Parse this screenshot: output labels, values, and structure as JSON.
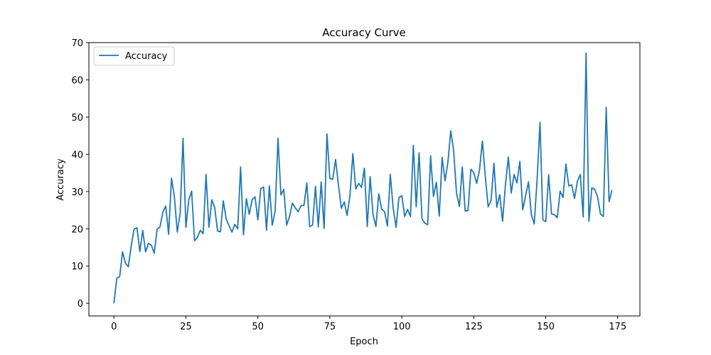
{
  "chart_data": {
    "type": "line",
    "title": "Accuracy Curve",
    "xlabel": "Epoch",
    "ylabel": "Accuracy",
    "xlim": [
      -8.7,
      182.7
    ],
    "ylim": [
      -3.4,
      70
    ],
    "xticks": [
      0,
      25,
      50,
      75,
      100,
      125,
      150,
      175
    ],
    "yticks": [
      0,
      10,
      20,
      30,
      40,
      50,
      60,
      70
    ],
    "grid": false,
    "legend": "top-left",
    "colors": {
      "series": "#1f77b4",
      "axis": "#000000",
      "legend_border": "#cccccc"
    },
    "series": [
      {
        "name": "Accuracy",
        "values": [
          0,
          6.7,
          7.2,
          13.8,
          10.8,
          9.8,
          15.4,
          19.9,
          20.3,
          13.9,
          19.6,
          13.8,
          16.1,
          15.6,
          13.4,
          19.9,
          20.5,
          24.5,
          26.1,
          18.5,
          33.6,
          28.6,
          19.1,
          24.1,
          44.3,
          20.4,
          27.8,
          30.1,
          16.8,
          17.7,
          19.6,
          18.7,
          34.6,
          20.4,
          27.8,
          25.7,
          19.4,
          19.2,
          27.5,
          22.6,
          20.8,
          19.1,
          21.2,
          20.0,
          36.6,
          18.4,
          28.1,
          23.9,
          27.8,
          28.6,
          22.4,
          30.8,
          31.2,
          19.6,
          31.5,
          21.0,
          24.8,
          44.3,
          29.1,
          30.6,
          21.0,
          23.3,
          26.9,
          25.6,
          24.6,
          26.2,
          26.3,
          32.3,
          20.6,
          21.0,
          31.4,
          20.5,
          32.6,
          20.1,
          45.5,
          33.5,
          33.3,
          38.6,
          31.7,
          25.5,
          27.2,
          23.6,
          29.0,
          40.2,
          30.7,
          32.2,
          31.1,
          36.3,
          20.6,
          34.0,
          23.8,
          20.6,
          29.4,
          25.3,
          24.6,
          20.7,
          34.6,
          25.6,
          20.4,
          28.4,
          28.9,
          23.3,
          25.2,
          23.3,
          42.4,
          25.9,
          40.4,
          22.7,
          21.5,
          21.1,
          39.6,
          28.7,
          32.5,
          23.4,
          39.2,
          32.9,
          37.8,
          46.3,
          41.0,
          29.6,
          26.0,
          36.6,
          24.8,
          24.9,
          36.0,
          35.1,
          32.2,
          35.9,
          43.6,
          34.1,
          25.9,
          27.6,
          37.6,
          25.8,
          29.2,
          22.0,
          31.9,
          39.3,
          29.6,
          34.6,
          32.3,
          38.1,
          25.1,
          28.9,
          32.6,
          23.8,
          21.3,
          33.3,
          48.6,
          22.4,
          21.9,
          34.5,
          24.0,
          23.8,
          23.0,
          30.1,
          28.4,
          37.4,
          31.5,
          31.8,
          28.2,
          32.8,
          34.6,
          23.2,
          67.2,
          22.0,
          31.0,
          30.6,
          28.6,
          24.0,
          23.3,
          52.6,
          27.3,
          30.4
        ]
      }
    ]
  }
}
